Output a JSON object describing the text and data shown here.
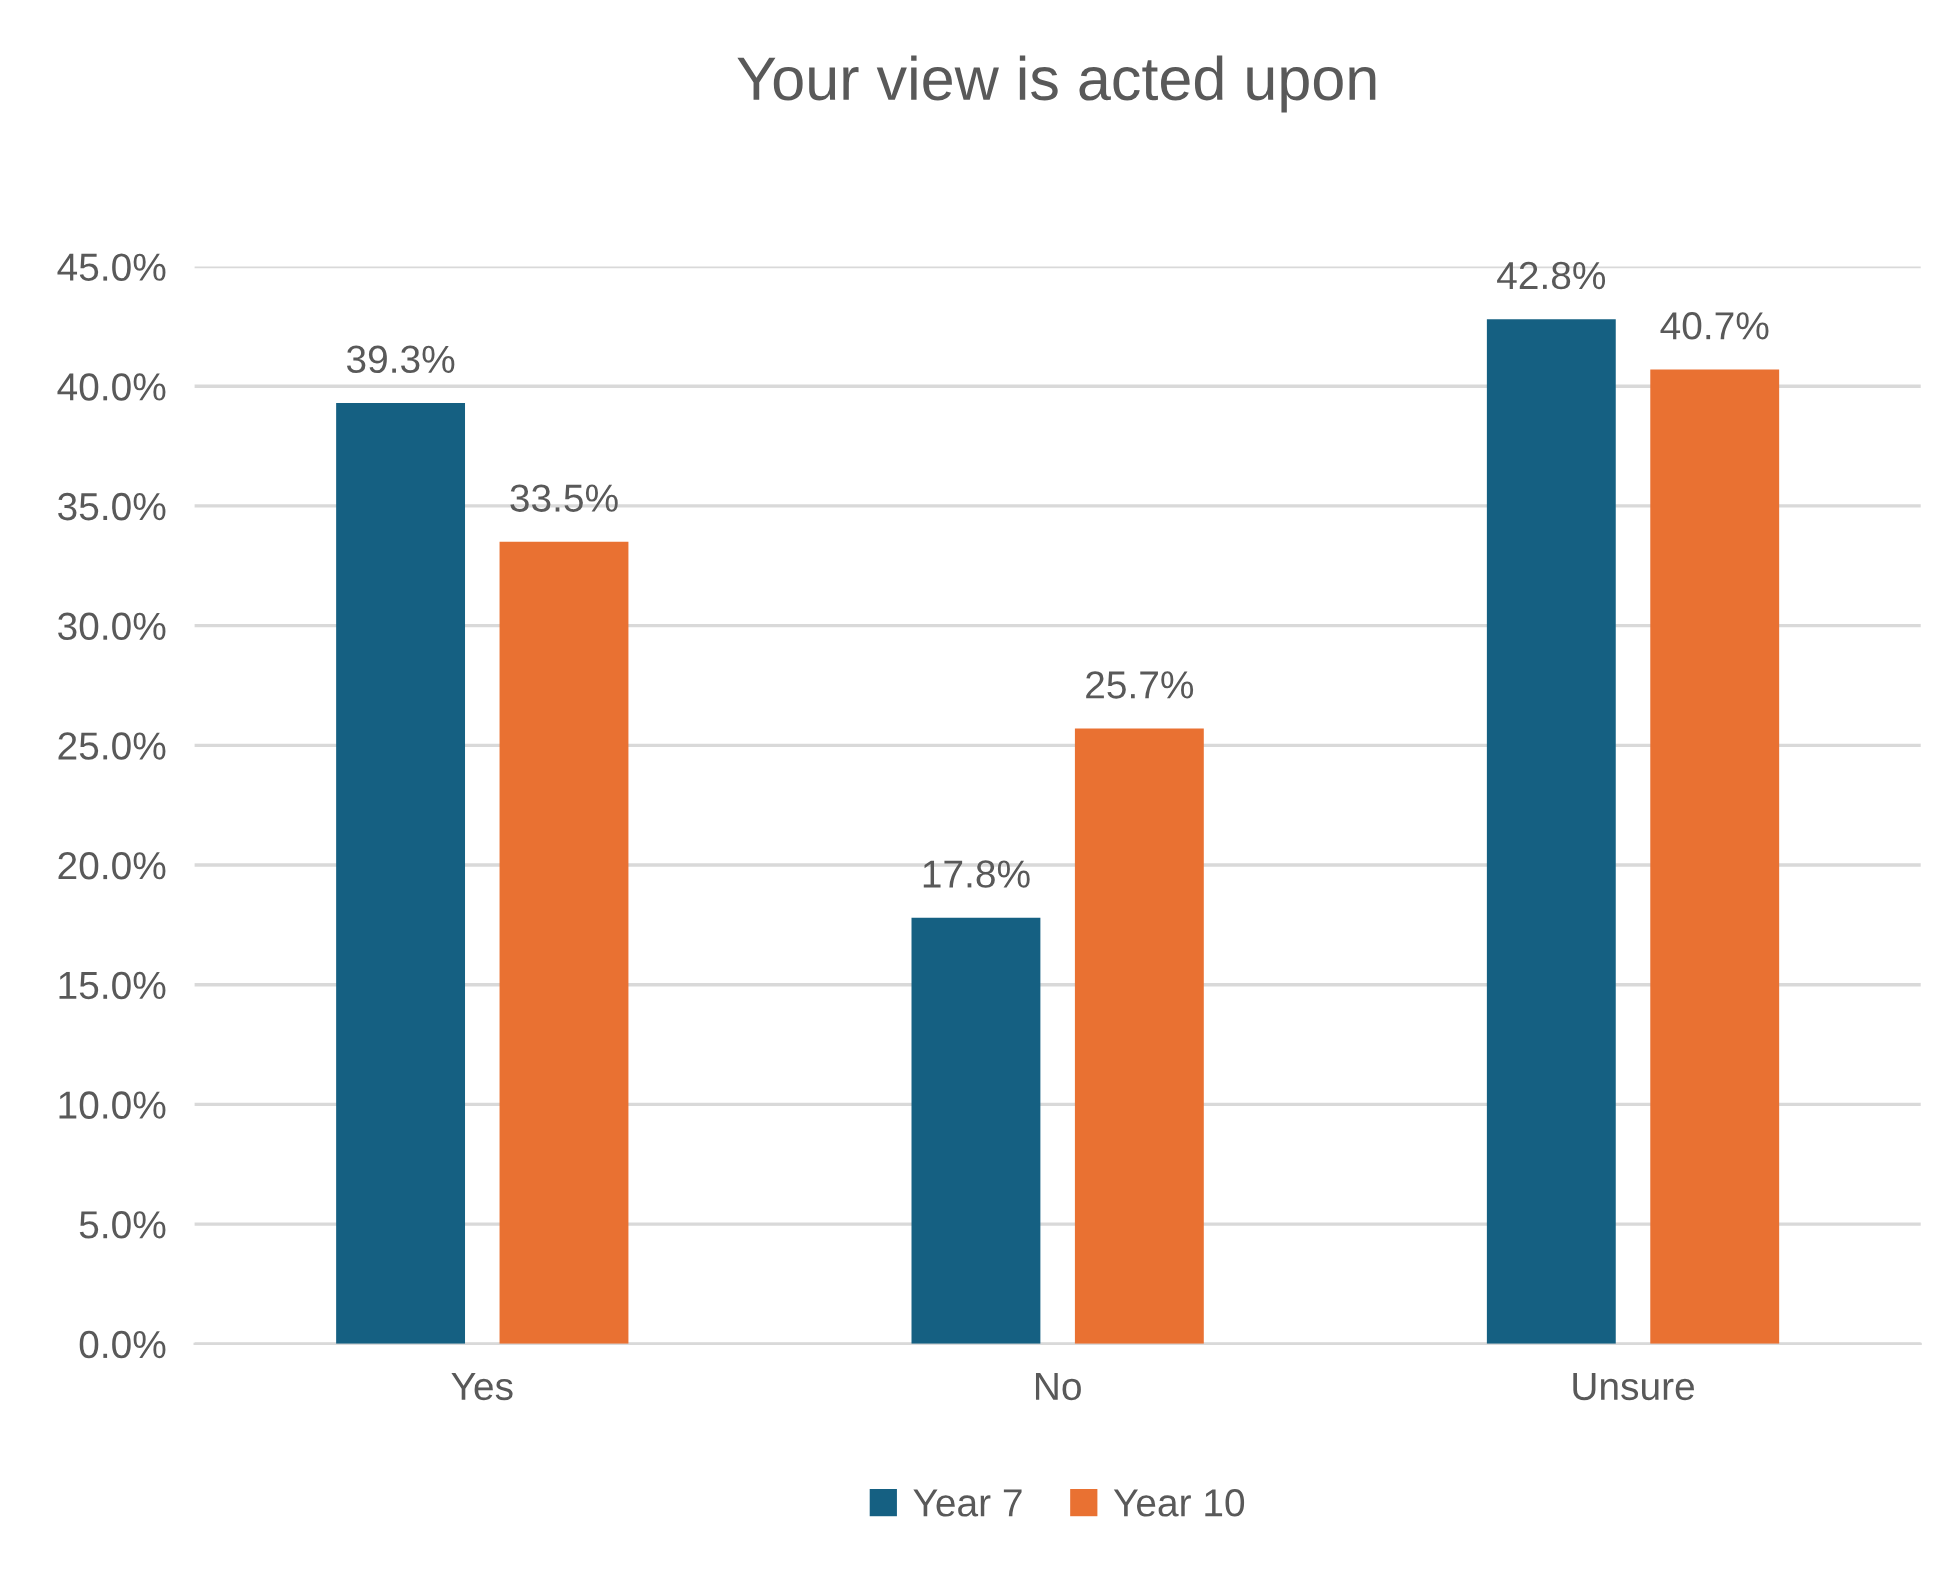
{
  "chart_data": {
    "type": "bar",
    "title": "Your view is acted upon",
    "categories": [
      "Yes",
      "No",
      "Unsure"
    ],
    "series": [
      {
        "name": "Year 7",
        "color": "#156082",
        "values": [
          39.3,
          17.8,
          42.8
        ],
        "value_labels": [
          "39.3%",
          "17.8%",
          "42.8%"
        ]
      },
      {
        "name": "Year 10",
        "color": "#e97132",
        "values": [
          33.5,
          25.7,
          40.7
        ],
        "value_labels": [
          "33.5%",
          "25.7%",
          "40.7%"
        ]
      }
    ],
    "ylim": [
      0,
      45
    ],
    "yticks": [
      {
        "value": 0,
        "label": "0.0%"
      },
      {
        "value": 5,
        "label": "5.0%"
      },
      {
        "value": 10,
        "label": "10.0%"
      },
      {
        "value": 15,
        "label": "15.0%"
      },
      {
        "value": 20,
        "label": "20.0%"
      },
      {
        "value": 25,
        "label": "25.0%"
      },
      {
        "value": 30,
        "label": "30.0%"
      },
      {
        "value": 35,
        "label": "35.0%"
      },
      {
        "value": 40,
        "label": "40.0%"
      },
      {
        "value": 45,
        "label": "45.0%"
      }
    ],
    "grid": "y",
    "legend": "bottom"
  }
}
